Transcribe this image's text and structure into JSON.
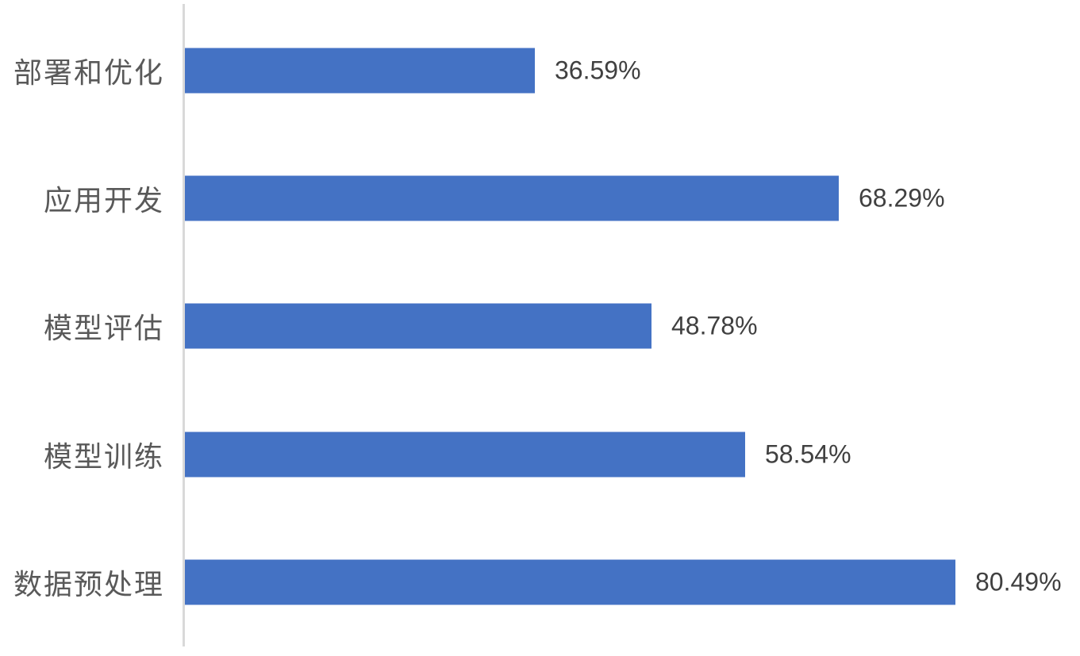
{
  "chart_data": {
    "type": "bar",
    "orientation": "horizontal",
    "row_order": "top-to-bottom",
    "categories": [
      "部署和优化",
      "应用开发",
      "模型评估",
      "模型训练",
      "数据预处理"
    ],
    "values": [
      36.59,
      68.29,
      48.78,
      58.54,
      80.49
    ],
    "value_labels": [
      "36.59%",
      "68.29%",
      "48.78%",
      "58.54%",
      "80.49%"
    ],
    "title": "",
    "xlabel": "",
    "ylabel": "",
    "xlim": [
      0,
      100
    ],
    "grid": false,
    "legend": false,
    "bar_color": "#4472C4",
    "axis_line_color": "#D9D9D9",
    "category_label_color": "#595959",
    "value_label_color": "#404040",
    "background_color": "#FFFFFF"
  }
}
